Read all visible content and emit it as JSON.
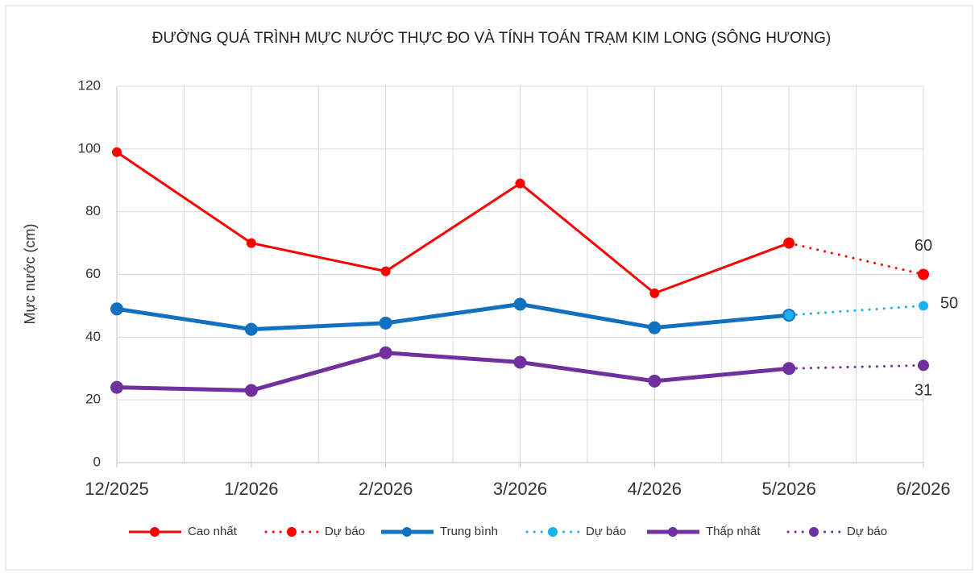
{
  "chart_data": {
    "type": "line",
    "title": "ĐƯỜNG QUÁ TRÌNH MỰC NƯỚC THỰC ĐO VÀ TÍNH TOÁN TRẠM KIM LONG (SÔNG HƯƠNG)",
    "y_label": "Mực nước (cm)",
    "categories": [
      "12/2025",
      "1/2026",
      "2/2026",
      "3/2026",
      "4/2026",
      "5/2026",
      "6/2026"
    ],
    "ylim": [
      0,
      120
    ],
    "yticks": [
      0,
      20,
      40,
      60,
      80,
      100,
      120
    ],
    "grid": true,
    "legend": "bottom",
    "series": [
      {
        "name": "Cao nhất",
        "color": "#ff0000",
        "line_width": 3,
        "marker_radius": 6,
        "dash": "solid",
        "values": [
          99,
          70,
          61,
          89,
          54,
          70,
          null
        ]
      },
      {
        "name": "Dự báo",
        "color": "#ff0000",
        "line_width": 3,
        "marker_radius": 7,
        "dash": "dot",
        "label_position": "above",
        "values": [
          null,
          null,
          null,
          null,
          null,
          70,
          60
        ]
      },
      {
        "name": "Trung bình",
        "color": "#1170c0",
        "line_width": 5,
        "marker_radius": 8,
        "dash": "solid",
        "values": [
          49,
          42.5,
          44.5,
          50.5,
          43,
          47,
          null
        ]
      },
      {
        "name": "Dự báo",
        "color": "#1ab2ec",
        "line_width": 3,
        "marker_radius": 6,
        "dash": "dot",
        "label_position": "right",
        "values": [
          null,
          null,
          null,
          null,
          null,
          47,
          50
        ]
      },
      {
        "name": "Thấp nhất",
        "color": "#7030a0",
        "line_width": 5,
        "marker_radius": 8,
        "dash": "solid",
        "values": [
          24,
          23,
          35,
          32,
          26,
          30,
          null
        ]
      },
      {
        "name": "Dự báo",
        "color": "#7030a0",
        "line_width": 3,
        "marker_radius": 7,
        "dash": "dot",
        "label_position": "below",
        "values": [
          null,
          null,
          null,
          null,
          null,
          30,
          31
        ]
      }
    ]
  }
}
